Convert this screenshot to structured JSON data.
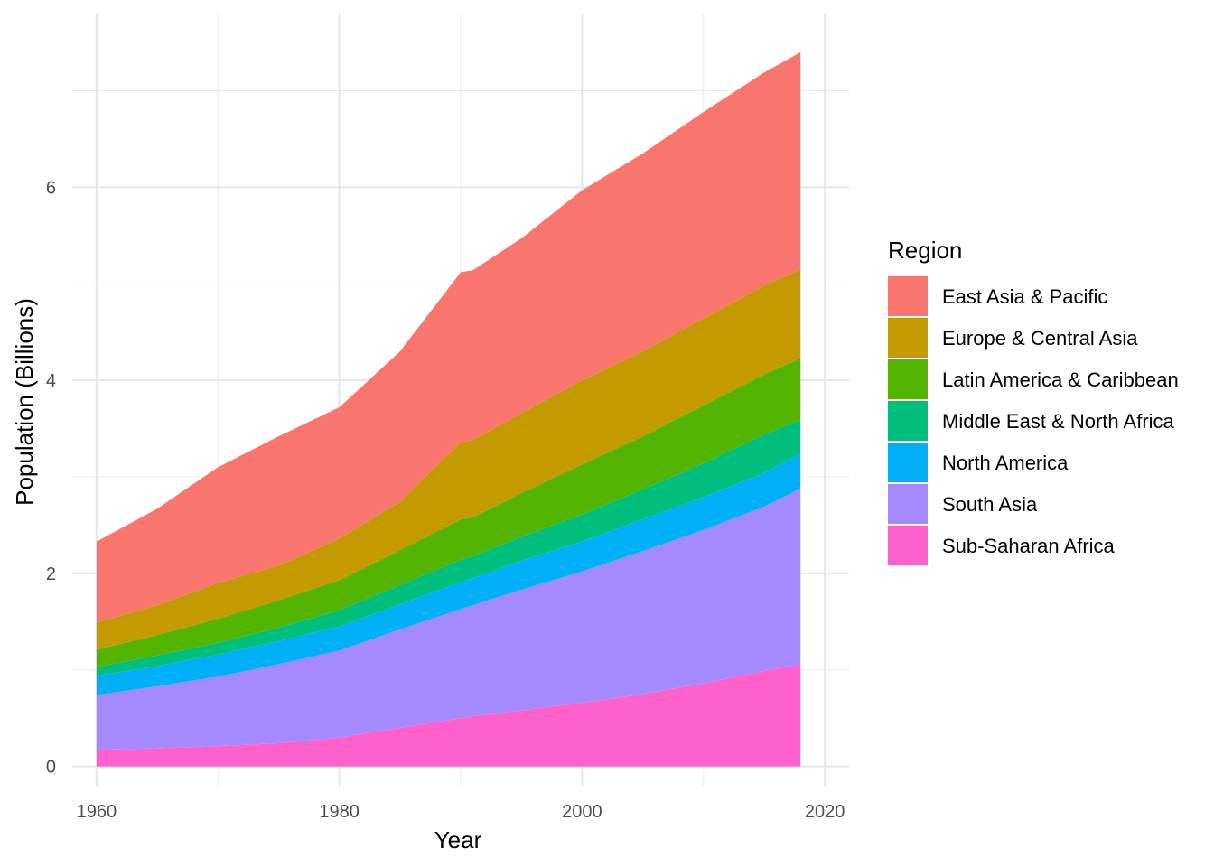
{
  "chart_data": {
    "type": "area",
    "stacked": true,
    "title": "",
    "xlabel": "Year",
    "ylabel": "Population (Billions)",
    "xlim": [
      1958,
      2022
    ],
    "ylim": [
      -0.2,
      7.8
    ],
    "x_ticks": [
      1960,
      1980,
      2000,
      2020
    ],
    "y_ticks": [
      0,
      2,
      4,
      6
    ],
    "grid": true,
    "legend": {
      "title": "Region",
      "position": "right"
    },
    "x": [
      1960,
      1965,
      1970,
      1975,
      1980,
      1985,
      1990,
      1991,
      1995,
      2000,
      2005,
      2010,
      2015,
      2018
    ],
    "series": [
      {
        "name": "Sub-Saharan Africa",
        "color": "#FF61CC",
        "values": [
          0.17,
          0.19,
          0.21,
          0.24,
          0.3,
          0.4,
          0.5,
          0.52,
          0.58,
          0.66,
          0.75,
          0.86,
          0.99,
          1.06
        ]
      },
      {
        "name": "South Asia",
        "color": "#A58AFF",
        "values": [
          0.57,
          0.64,
          0.72,
          0.82,
          0.9,
          1.02,
          1.13,
          1.15,
          1.25,
          1.36,
          1.48,
          1.59,
          1.7,
          1.82
        ]
      },
      {
        "name": "North America",
        "color": "#00B0F6",
        "values": [
          0.2,
          0.21,
          0.23,
          0.24,
          0.25,
          0.26,
          0.28,
          0.28,
          0.3,
          0.31,
          0.33,
          0.34,
          0.35,
          0.36
        ]
      },
      {
        "name": "Middle East & North Africa",
        "color": "#00BF7D",
        "values": [
          0.09,
          0.11,
          0.12,
          0.14,
          0.17,
          0.2,
          0.23,
          0.23,
          0.25,
          0.28,
          0.31,
          0.35,
          0.4,
          0.35
        ]
      },
      {
        "name": "Latin America & Caribbean",
        "color": "#53B400",
        "values": [
          0.18,
          0.21,
          0.25,
          0.28,
          0.31,
          0.36,
          0.42,
          0.4,
          0.45,
          0.52,
          0.55,
          0.6,
          0.62,
          0.64
        ]
      },
      {
        "name": "Europe & Central Asia",
        "color": "#C49A00",
        "values": [
          0.28,
          0.31,
          0.37,
          0.36,
          0.43,
          0.5,
          0.8,
          0.8,
          0.83,
          0.87,
          0.88,
          0.9,
          0.92,
          0.92
        ]
      },
      {
        "name": "East Asia & Pacific",
        "color": "#F8766D",
        "values": [
          0.84,
          1.0,
          1.2,
          1.34,
          1.36,
          1.56,
          1.76,
          1.76,
          1.81,
          1.97,
          2.05,
          2.14,
          2.21,
          2.25
        ]
      }
    ],
    "legend_order": [
      "East Asia & Pacific",
      "Europe & Central Asia",
      "Latin America & Caribbean",
      "Middle East & North Africa",
      "North America",
      "South Asia",
      "Sub-Saharan Africa"
    ]
  }
}
